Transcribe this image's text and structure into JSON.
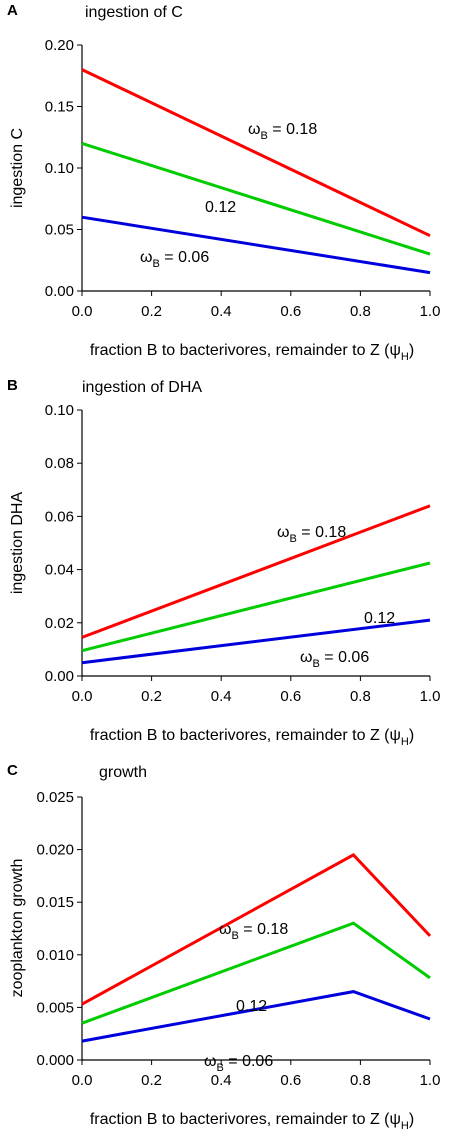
{
  "chart_data": [
    {
      "type": "line",
      "panel": "A",
      "title": "ingestion of C",
      "xlabel_main": "fraction B to bacterivores, remainder to Z (",
      "xlabel_sym": "ψ",
      "xlabel_sub": "H",
      "xlabel_close": ")",
      "ylabel": "ingestion C",
      "xlim": [
        0,
        1
      ],
      "ylim": [
        0,
        0.2
      ],
      "xticks": [
        "0.0",
        "0.2",
        "0.4",
        "0.6",
        "0.8",
        "1.0"
      ],
      "yticks": [
        "0.00",
        "0.05",
        "0.10",
        "0.15",
        "0.20"
      ],
      "series": [
        {
          "x": [
            0,
            1
          ],
          "y": [
            0.18,
            0.045
          ],
          "color": "#ff0000"
        },
        {
          "x": [
            0,
            1
          ],
          "y": [
            0.12,
            0.03
          ],
          "color": "#00cc00"
        },
        {
          "x": [
            0,
            1
          ],
          "y": [
            0.06,
            0.015
          ],
          "color": "#0000dd"
        }
      ],
      "annotations": [
        {
          "sym": "ω",
          "sub": "B",
          "text": " = 0.18"
        },
        {
          "sym": "",
          "sub": "",
          "text": "0.12"
        },
        {
          "sym": "ω",
          "sub": "B",
          "text": " = 0.06"
        }
      ],
      "grid": false
    },
    {
      "type": "line",
      "panel": "B",
      "title": "ingestion of DHA",
      "xlabel_main": "fraction B to bacterivores, remainder to Z (",
      "xlabel_sym": "ψ",
      "xlabel_sub": "H",
      "xlabel_close": ")",
      "ylabel": "ingestion DHA",
      "xlim": [
        0,
        1
      ],
      "ylim": [
        0,
        0.1
      ],
      "xticks": [
        "0.0",
        "0.2",
        "0.4",
        "0.6",
        "0.8",
        "1.0"
      ],
      "yticks": [
        "0.00",
        "0.02",
        "0.04",
        "0.06",
        "0.08",
        "0.10"
      ],
      "series": [
        {
          "x": [
            0,
            1
          ],
          "y": [
            0.0145,
            0.064
          ],
          "color": "#ff0000"
        },
        {
          "x": [
            0,
            1
          ],
          "y": [
            0.0095,
            0.0425
          ],
          "color": "#00cc00"
        },
        {
          "x": [
            0,
            1
          ],
          "y": [
            0.005,
            0.021
          ],
          "color": "#0000dd"
        }
      ],
      "annotations": [
        {
          "sym": "ω",
          "sub": "B",
          "text": " = 0.18"
        },
        {
          "sym": "",
          "sub": "",
          "text": "0.12"
        },
        {
          "sym": "ω",
          "sub": "B",
          "text": " = 0.06"
        }
      ],
      "grid": false
    },
    {
      "type": "line",
      "panel": "C",
      "title": "growth",
      "xlabel_main": "fraction B to bacterivores, remainder to Z (",
      "xlabel_sym": "ψ",
      "xlabel_sub": "H",
      "xlabel_close": ")",
      "ylabel": "zooplankton growth",
      "xlim": [
        0,
        1
      ],
      "ylim": [
        0,
        0.025
      ],
      "xticks": [
        "0.0",
        "0.2",
        "0.4",
        "0.6",
        "0.8",
        "1.0"
      ],
      "yticks": [
        "0.000",
        "0.005",
        "0.010",
        "0.015",
        "0.020",
        "0.025"
      ],
      "series": [
        {
          "x": [
            0,
            0.78,
            1
          ],
          "y": [
            0.0053,
            0.0195,
            0.0118
          ],
          "color": "#ff0000"
        },
        {
          "x": [
            0,
            0.78,
            1
          ],
          "y": [
            0.0035,
            0.013,
            0.0078
          ],
          "color": "#00cc00"
        },
        {
          "x": [
            0,
            0.78,
            1
          ],
          "y": [
            0.0018,
            0.0065,
            0.0039
          ],
          "color": "#0000dd"
        }
      ],
      "annotations": [
        {
          "sym": "ω",
          "sub": "B",
          "text": " = 0.18"
        },
        {
          "sym": "",
          "sub": "",
          "text": "0.12"
        },
        {
          "sym": "ω",
          "sub": "B",
          "text": " = 0.06"
        }
      ],
      "grid": false
    }
  ]
}
